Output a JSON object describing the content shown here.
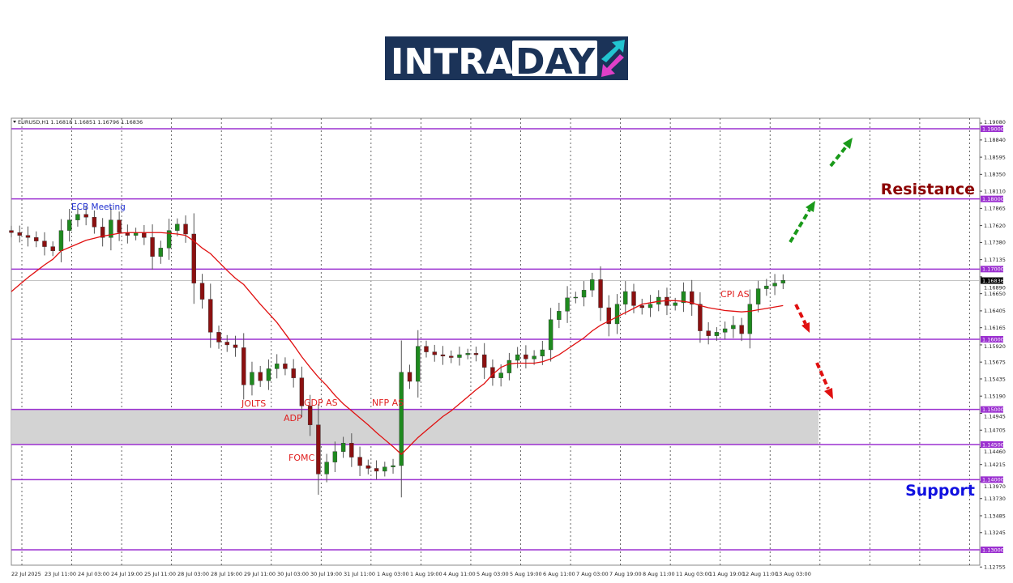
{
  "logo": {
    "text_light": "INTRA",
    "text_boxed": "DAY",
    "bg": "#1b3358",
    "arrow_up_color": "#22c4d0",
    "arrow_down_color": "#e040c8"
  },
  "chart_data": {
    "type": "candlestick",
    "symbol_header": "EURUSD,H1  1.16818 1.16851 1.16796 1.16836",
    "up_color": "#1e8a1e",
    "down_color": "#8b1010",
    "ma_color": "#e01010",
    "level_color": "#9b30d0",
    "y_range": [
      1.12755,
      1.1908
    ],
    "y_ticks": [
      "1.19080",
      "1.18840",
      "1.18595",
      "1.18350",
      "1.18110",
      "1.17865",
      "1.17620",
      "1.17380",
      "1.17135",
      "1.16890",
      "1.16650",
      "1.16405",
      "1.16165",
      "1.15920",
      "1.15675",
      "1.15435",
      "1.15190",
      "1.14945",
      "1.14705",
      "1.14460",
      "1.14215",
      "1.13970",
      "1.13730",
      "1.13485",
      "1.13245",
      "1.12755"
    ],
    "x_ticks": [
      "22 Jul 2025",
      "23 Jul 11:00",
      "24 Jul 03:00",
      "24 Jul 19:00",
      "25 Jul 11:00",
      "28 Jul 03:00",
      "28 Jul 19:00",
      "29 Jul 11:00",
      "30 Jul 03:00",
      "30 Jul 19:00",
      "31 Jul 11:00",
      "1 Aug 03:00",
      "1 Aug 19:00",
      "4 Aug 11:00",
      "5 Aug 03:00",
      "5 Aug 19:00",
      "6 Aug 11:00",
      "7 Aug 03:00",
      "7 Aug 19:00",
      "8 Aug 11:00",
      "11 Aug 03:00",
      "11 Aug 19:00",
      "12 Aug 11:00",
      "13 Aug 03:00"
    ],
    "levels": [
      "1.19000",
      "1.18000",
      "1.17000",
      "1.16000",
      "1.15000",
      "1.14500",
      "1.14000",
      "1.13000"
    ],
    "current_price": "1.16836",
    "zone": [
      1.145,
      1.15
    ],
    "closes": [
      1.1752,
      1.1748,
      1.1745,
      1.174,
      1.1732,
      1.1726,
      1.1755,
      1.177,
      1.1778,
      1.1774,
      1.176,
      1.1745,
      1.177,
      1.1752,
      1.1748,
      1.1752,
      1.1745,
      1.1718,
      1.173,
      1.1755,
      1.1764,
      1.175,
      1.168,
      1.1657,
      1.161,
      1.1596,
      1.1592,
      1.1588,
      1.1535,
      1.1553,
      1.1541,
      1.1558,
      1.1565,
      1.1558,
      1.1545,
      1.1505,
      1.1478,
      1.1408,
      1.1425,
      1.144,
      1.1452,
      1.1432,
      1.142,
      1.1416,
      1.1412,
      1.1418,
      1.142,
      1.1553,
      1.154,
      1.159,
      1.1582,
      1.1578,
      1.1576,
      1.1574,
      1.1578,
      1.158,
      1.1578,
      1.156,
      1.1545,
      1.1552,
      1.157,
      1.1578,
      1.1572,
      1.1576,
      1.1585,
      1.1628,
      1.164,
      1.1659,
      1.166,
      1.167,
      1.1685,
      1.1645,
      1.1622,
      1.165,
      1.1668,
      1.1648,
      1.1645,
      1.165,
      1.166,
      1.1648,
      1.1652,
      1.1668,
      1.165,
      1.1612,
      1.1605,
      1.161,
      1.1615,
      1.162,
      1.1608,
      1.165,
      1.1672,
      1.1676,
      1.168,
      1.1684
    ],
    "moving_average": [
      1.1668,
      1.1678,
      1.1688,
      1.1697,
      1.1706,
      1.1714,
      1.1726,
      1.1731,
      1.1736,
      1.1741,
      1.1744,
      1.1747,
      1.1749,
      1.1751,
      1.1752,
      1.1752,
      1.1752,
      1.1752,
      1.1752,
      1.1751,
      1.175,
      1.1748,
      1.174,
      1.173,
      1.1722,
      1.171,
      1.1698,
      1.1687,
      1.1678,
      1.1664,
      1.165,
      1.1637,
      1.1624,
      1.1608,
      1.1592,
      1.1575,
      1.156,
      1.1546,
      1.1534,
      1.152,
      1.1508,
      1.1498,
      1.1488,
      1.1478,
      1.1467,
      1.1457,
      1.1447,
      1.1436,
      1.1448,
      1.146,
      1.147,
      1.148,
      1.149,
      1.1498,
      1.1508,
      1.1518,
      1.1528,
      1.1537,
      1.155,
      1.156,
      1.1565,
      1.1566,
      1.1566,
      1.1566,
      1.1568,
      1.1572,
      1.1578,
      1.1586,
      1.1594,
      1.1602,
      1.1612,
      1.162,
      1.1626,
      1.1632,
      1.1638,
      1.1644,
      1.165,
      1.1652,
      1.1654,
      1.1655,
      1.1655,
      1.1654,
      1.1652,
      1.1648,
      1.1645,
      1.1643,
      1.1641,
      1.164,
      1.1639,
      1.164,
      1.1642,
      1.1644,
      1.1646,
      1.1648
    ],
    "annotations": {
      "ecb": "ECB Meeting",
      "jolts": "JOLTS",
      "gdp": "GDP AS",
      "adp": "ADP",
      "fomc": "FOMC",
      "nfp": "NFP AS",
      "cpi": "CPI AS",
      "resistance": "Resistance",
      "support": "Support"
    },
    "annotation_colors": {
      "event": "#e02020",
      "ecb": "#2030d0",
      "resistance": "#8b0000",
      "support": "#1010e0"
    },
    "projections": [
      "bullish-green-arrows",
      "bearish-red-arrows"
    ]
  }
}
